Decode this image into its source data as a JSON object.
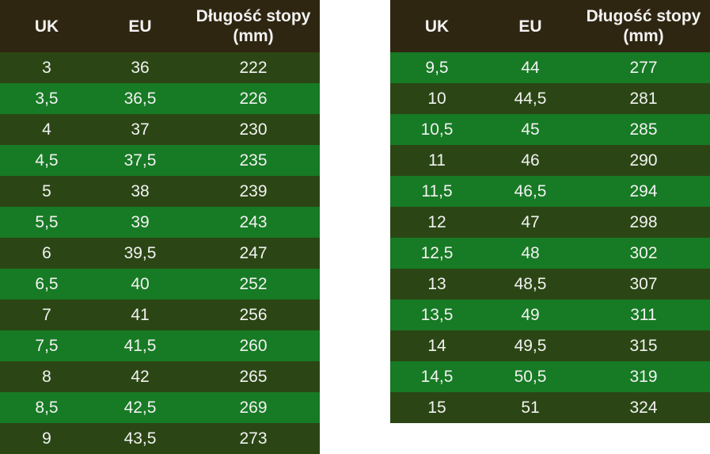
{
  "tables": [
    {
      "header": [
        "UK",
        "EU",
        "Długość stopy (mm)"
      ],
      "rows": [
        [
          "3",
          "36",
          "222"
        ],
        [
          "3,5",
          "36,5",
          "226"
        ],
        [
          "4",
          "37",
          "230"
        ],
        [
          "4,5",
          "37,5",
          "235"
        ],
        [
          "5",
          "38",
          "239"
        ],
        [
          "5,5",
          "39",
          "243"
        ],
        [
          "6",
          "39,5",
          "247"
        ],
        [
          "6,5",
          "40",
          "252"
        ],
        [
          "7",
          "41",
          "256"
        ],
        [
          "7,5",
          "41,5",
          "260"
        ],
        [
          "8",
          "42",
          "265"
        ],
        [
          "8,5",
          "42,5",
          "269"
        ],
        [
          "9",
          "43,5",
          "273"
        ]
      ]
    },
    {
      "header": [
        "UK",
        "EU",
        "Długość stopy (mm)"
      ],
      "rows": [
        [
          "9,5",
          "44",
          "277"
        ],
        [
          "10",
          "44,5",
          "281"
        ],
        [
          "10,5",
          "45",
          "285"
        ],
        [
          "11",
          "46",
          "290"
        ],
        [
          "11,5",
          "46,5",
          "294"
        ],
        [
          "12",
          "47",
          "298"
        ],
        [
          "12,5",
          "48",
          "302"
        ],
        [
          "13",
          "48,5",
          "307"
        ],
        [
          "13,5",
          "49",
          "311"
        ],
        [
          "14",
          "49,5",
          "315"
        ],
        [
          "14,5",
          "50,5",
          "319"
        ],
        [
          "15",
          "51",
          "324"
        ]
      ]
    }
  ]
}
